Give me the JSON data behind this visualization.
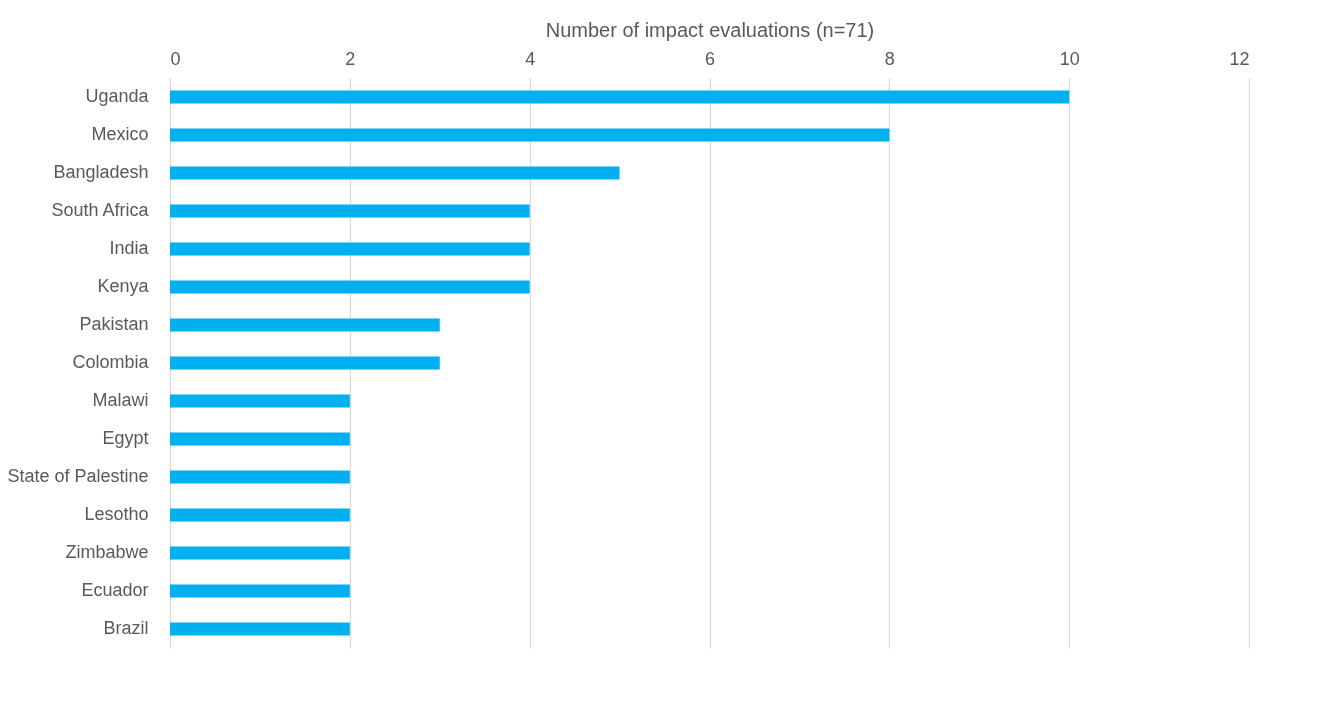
{
  "chart_data": {
    "type": "bar",
    "orientation": "horizontal",
    "xlabel": "Number of impact evaluations (n=71)",
    "categories": [
      "Uganda",
      "Mexico",
      "Bangladesh",
      "South Africa",
      "India",
      "Kenya",
      "Pakistan",
      "Colombia",
      "Malawi",
      "Egypt",
      "State of Palestine",
      "Lesotho",
      "Zimbabwe",
      "Ecuador",
      "Brazil"
    ],
    "values": [
      10,
      8,
      5,
      4,
      4,
      4,
      3,
      3,
      2,
      2,
      2,
      2,
      2,
      2,
      2
    ],
    "color": "#00b0f0",
    "xlim": [
      0,
      12
    ],
    "xticks": [
      0,
      2,
      4,
      6,
      8,
      10,
      12
    ],
    "grid": "x"
  }
}
